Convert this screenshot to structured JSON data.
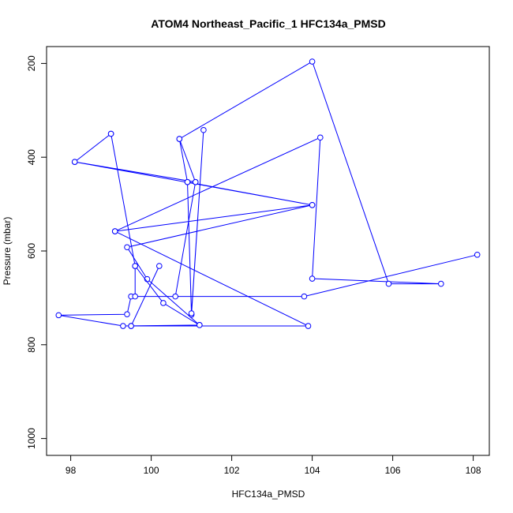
{
  "chart_data": {
    "type": "line",
    "title": "ATOM4 Northeast_Pacific_1 HFC134a_PMSD",
    "xlabel": "HFC134a_PMSD",
    "ylabel": "Pressure (mbar)",
    "xlim": [
      97.4,
      108.4
    ],
    "ylim": [
      1036,
      164
    ],
    "y_reversed": true,
    "x_ticks": [
      98,
      100,
      102,
      104,
      106,
      108
    ],
    "x_tick_labels": [
      "98",
      "100",
      "102",
      "104",
      "106",
      "108"
    ],
    "y_ticks": [
      200,
      400,
      600,
      800,
      1000
    ],
    "y_tick_labels": [
      "200",
      "400",
      "600",
      "800",
      "1000"
    ],
    "grid": false,
    "legend": "none",
    "series": [
      {
        "color": "#0000ff",
        "marker": "open-circle",
        "points": [
          {
            "x": 108.1,
            "y": 608
          },
          {
            "x": 103.8,
            "y": 697
          },
          {
            "x": 99.5,
            "y": 697
          },
          {
            "x": 99.4,
            "y": 735
          },
          {
            "x": 97.7,
            "y": 737
          },
          {
            "x": 99.3,
            "y": 760
          },
          {
            "x": 101.2,
            "y": 758
          },
          {
            "x": 99.9,
            "y": 660
          },
          {
            "x": 99.4,
            "y": 592
          },
          {
            "x": 104.0,
            "y": 502
          },
          {
            "x": 100.9,
            "y": 453
          },
          {
            "x": 101.0,
            "y": 736
          },
          {
            "x": 101.3,
            "y": 342
          },
          {
            "x": 101.0,
            "y": 733
          },
          {
            "x": 100.9,
            "y": 453
          },
          {
            "x": 100.7,
            "y": 361
          },
          {
            "x": 101.1,
            "y": 453
          },
          {
            "x": 100.6,
            "y": 697
          },
          {
            "x": 101.1,
            "y": 453
          },
          {
            "x": 98.1,
            "y": 410
          },
          {
            "x": 104.0,
            "y": 502
          },
          {
            "x": 99.1,
            "y": 558
          },
          {
            "x": 104.2,
            "y": 358
          },
          {
            "x": 104.0,
            "y": 659
          },
          {
            "x": 107.2,
            "y": 670
          },
          {
            "x": 105.9,
            "y": 670
          },
          {
            "x": 104.0,
            "y": 196
          },
          {
            "x": 100.7,
            "y": 361
          }
        ]
      },
      {
        "color": "#0000ff",
        "marker": "open-circle",
        "points": [
          {
            "x": 99.0,
            "y": 350
          },
          {
            "x": 98.1,
            "y": 410
          }
        ]
      },
      {
        "color": "#0000ff",
        "marker": "open-circle",
        "points": [
          {
            "x": 99.0,
            "y": 350
          },
          {
            "x": 99.6,
            "y": 632
          },
          {
            "x": 99.6,
            "y": 697
          }
        ]
      },
      {
        "color": "#0000ff",
        "marker": "open-circle",
        "points": [
          {
            "x": 99.1,
            "y": 558
          },
          {
            "x": 103.9,
            "y": 760
          },
          {
            "x": 99.5,
            "y": 760
          },
          {
            "x": 100.2,
            "y": 632
          },
          {
            "x": 99.5,
            "y": 760
          }
        ]
      },
      {
        "color": "#0000ff",
        "marker": "open-circle",
        "points": [
          {
            "x": 99.6,
            "y": 632
          },
          {
            "x": 100.3,
            "y": 711
          },
          {
            "x": 101.2,
            "y": 758
          }
        ]
      }
    ]
  }
}
